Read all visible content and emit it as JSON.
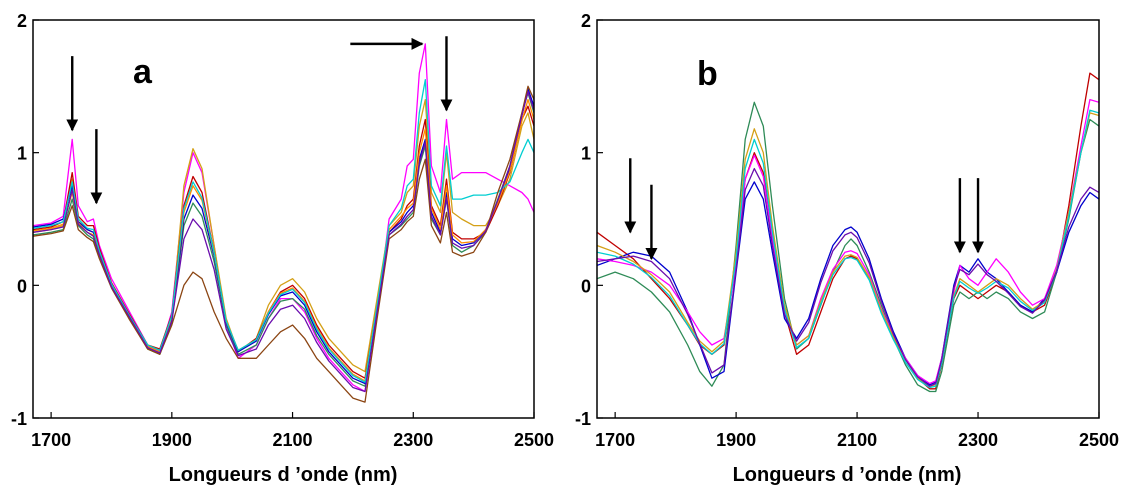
{
  "chart_data": [
    {
      "type": "line",
      "panel_label": "a",
      "xlabel": "Longueurs d ’onde (nm)",
      "ylabel": "",
      "xlim": [
        1670,
        2500
      ],
      "ylim": [
        -1,
        2
      ],
      "x_ticks": [
        1700,
        1900,
        2100,
        2300,
        2500
      ],
      "y_ticks": [
        -1,
        0,
        1,
        2
      ],
      "grid": false,
      "legend": "none",
      "x": [
        1670,
        1700,
        1720,
        1735,
        1745,
        1760,
        1770,
        1780,
        1800,
        1830,
        1860,
        1880,
        1900,
        1920,
        1935,
        1950,
        1970,
        1990,
        2010,
        2040,
        2060,
        2080,
        2100,
        2120,
        2140,
        2160,
        2180,
        2200,
        2220,
        2240,
        2260,
        2280,
        2290,
        2300,
        2310,
        2320,
        2330,
        2345,
        2355,
        2365,
        2380,
        2400,
        2420,
        2440,
        2460,
        2480,
        2490,
        2500
      ],
      "series": [
        {
          "color": "#ff00ff",
          "values": [
            0.45,
            0.47,
            0.52,
            1.1,
            0.6,
            0.48,
            0.5,
            0.3,
            0.05,
            -0.2,
            -0.45,
            -0.5,
            -0.2,
            0.7,
            1.0,
            0.85,
            0.3,
            -0.3,
            -0.55,
            -0.45,
            -0.25,
            -0.1,
            -0.1,
            -0.2,
            -0.4,
            -0.55,
            -0.65,
            -0.75,
            -0.8,
            -0.2,
            0.5,
            0.65,
            0.9,
            0.95,
            1.6,
            1.82,
            0.9,
            0.7,
            1.25,
            0.8,
            0.85,
            0.85,
            0.85,
            0.8,
            0.75,
            0.7,
            0.65,
            0.55
          ]
        },
        {
          "color": "#d4a017",
          "values": [
            0.4,
            0.42,
            0.45,
            0.8,
            0.5,
            0.42,
            0.4,
            0.25,
            0.0,
            -0.25,
            -0.48,
            -0.52,
            -0.25,
            0.75,
            1.03,
            0.88,
            0.3,
            -0.25,
            -0.5,
            -0.4,
            -0.15,
            0.0,
            0.05,
            -0.05,
            -0.25,
            -0.4,
            -0.5,
            -0.6,
            -0.65,
            -0.1,
            0.45,
            0.55,
            0.7,
            0.75,
            1.2,
            1.4,
            0.7,
            0.55,
            1.0,
            0.55,
            0.5,
            0.45,
            0.45,
            0.6,
            0.8,
            1.2,
            1.3,
            1.1
          ]
        },
        {
          "color": "#c00000",
          "values": [
            0.42,
            0.44,
            0.48,
            0.85,
            0.52,
            0.45,
            0.45,
            0.28,
            0.02,
            -0.22,
            -0.45,
            -0.48,
            -0.22,
            0.6,
            0.82,
            0.7,
            0.25,
            -0.28,
            -0.5,
            -0.4,
            -0.2,
            -0.05,
            0.0,
            -0.1,
            -0.3,
            -0.45,
            -0.55,
            -0.65,
            -0.7,
            -0.15,
            0.4,
            0.5,
            0.6,
            0.65,
            1.05,
            1.25,
            0.6,
            0.45,
            0.8,
            0.4,
            0.35,
            0.35,
            0.4,
            0.6,
            0.85,
            1.25,
            1.35,
            1.2
          ]
        },
        {
          "color": "#2e8b57",
          "values": [
            0.38,
            0.4,
            0.42,
            0.65,
            0.45,
            0.38,
            0.35,
            0.22,
            0.0,
            -0.25,
            -0.48,
            -0.52,
            -0.28,
            0.45,
            0.62,
            0.52,
            0.18,
            -0.3,
            -0.52,
            -0.45,
            -0.25,
            -0.12,
            -0.1,
            -0.18,
            -0.38,
            -0.52,
            -0.62,
            -0.72,
            -0.76,
            -0.18,
            0.38,
            0.45,
            0.5,
            0.55,
            0.9,
            1.05,
            0.5,
            0.38,
            0.65,
            0.3,
            0.25,
            0.3,
            0.4,
            0.65,
            0.9,
            1.3,
            1.45,
            1.3
          ]
        },
        {
          "color": "#0000cd",
          "values": [
            0.44,
            0.46,
            0.5,
            0.75,
            0.48,
            0.42,
            0.4,
            0.25,
            0.0,
            -0.24,
            -0.46,
            -0.5,
            -0.26,
            0.5,
            0.68,
            0.58,
            0.22,
            -0.28,
            -0.5,
            -0.42,
            -0.22,
            -0.08,
            -0.05,
            -0.15,
            -0.35,
            -0.5,
            -0.6,
            -0.7,
            -0.74,
            -0.16,
            0.4,
            0.48,
            0.55,
            0.6,
            0.95,
            1.1,
            0.55,
            0.4,
            0.7,
            0.35,
            0.3,
            0.32,
            0.42,
            0.62,
            0.88,
            1.28,
            1.48,
            1.35
          ]
        },
        {
          "color": "#ff8c00",
          "values": [
            0.41,
            0.43,
            0.46,
            0.7,
            0.47,
            0.4,
            0.38,
            0.24,
            0.0,
            -0.23,
            -0.46,
            -0.5,
            -0.24,
            0.55,
            0.75,
            0.64,
            0.24,
            -0.27,
            -0.49,
            -0.41,
            -0.2,
            -0.06,
            -0.02,
            -0.12,
            -0.32,
            -0.47,
            -0.57,
            -0.67,
            -0.72,
            -0.14,
            0.42,
            0.52,
            0.58,
            0.62,
            1.0,
            1.18,
            0.58,
            0.42,
            0.75,
            0.38,
            0.32,
            0.33,
            0.42,
            0.62,
            0.86,
            1.24,
            1.4,
            1.25
          ]
        },
        {
          "color": "#00ced1",
          "values": [
            0.43,
            0.45,
            0.48,
            0.78,
            0.5,
            0.43,
            0.42,
            0.26,
            0.01,
            -0.23,
            -0.45,
            -0.49,
            -0.23,
            0.58,
            0.78,
            0.66,
            0.25,
            -0.27,
            -0.49,
            -0.41,
            -0.21,
            -0.07,
            -0.03,
            -0.13,
            -0.33,
            -0.48,
            -0.58,
            -0.68,
            -0.73,
            -0.15,
            0.45,
            0.58,
            0.75,
            0.8,
            1.3,
            1.55,
            0.75,
            0.6,
            1.05,
            0.65,
            0.65,
            0.68,
            0.68,
            0.7,
            0.78,
            1.0,
            1.1,
            1.0
          ]
        },
        {
          "color": "#8b4513",
          "values": [
            0.37,
            0.39,
            0.41,
            0.6,
            0.42,
            0.36,
            0.33,
            0.2,
            -0.02,
            -0.26,
            -0.48,
            -0.52,
            -0.3,
            0.0,
            0.1,
            0.05,
            -0.2,
            -0.4,
            -0.55,
            -0.55,
            -0.45,
            -0.35,
            -0.3,
            -0.4,
            -0.55,
            -0.65,
            -0.75,
            -0.85,
            -0.88,
            -0.25,
            0.35,
            0.42,
            0.48,
            0.52,
            0.8,
            0.95,
            0.45,
            0.32,
            0.55,
            0.25,
            0.22,
            0.25,
            0.4,
            0.7,
            0.95,
            1.3,
            1.5,
            1.4
          ]
        },
        {
          "color": "#6a0dad",
          "values": [
            0.4,
            0.42,
            0.44,
            0.72,
            0.46,
            0.4,
            0.37,
            0.23,
            -0.01,
            -0.24,
            -0.47,
            -0.51,
            -0.27,
            0.35,
            0.5,
            0.42,
            0.12,
            -0.33,
            -0.53,
            -0.48,
            -0.3,
            -0.18,
            -0.15,
            -0.25,
            -0.43,
            -0.57,
            -0.67,
            -0.77,
            -0.8,
            -0.2,
            0.38,
            0.46,
            0.52,
            0.57,
            0.92,
            1.08,
            0.52,
            0.38,
            0.66,
            0.32,
            0.28,
            0.3,
            0.41,
            0.64,
            0.9,
            1.28,
            1.46,
            1.32
          ]
        }
      ],
      "annotations": [
        {
          "type": "arrow",
          "direction": "down",
          "x": 1735,
          "y": 1.17
        },
        {
          "type": "arrow",
          "direction": "down",
          "x": 1775,
          "y": 0.62
        },
        {
          "type": "arrow",
          "direction": "right",
          "x": 2315,
          "y": 1.82
        },
        {
          "type": "arrow",
          "direction": "down",
          "x": 2355,
          "y": 1.32
        }
      ]
    },
    {
      "type": "line",
      "panel_label": "b",
      "xlabel": "Longueurs d ’onde (nm)",
      "ylabel": "",
      "xlim": [
        1670,
        2500
      ],
      "ylim": [
        -1,
        2
      ],
      "x_ticks": [
        1700,
        1900,
        2100,
        2300,
        2500
      ],
      "y_ticks": [
        -1,
        0,
        1,
        2
      ],
      "grid": false,
      "legend": "none",
      "x": [
        1670,
        1700,
        1730,
        1760,
        1790,
        1820,
        1840,
        1860,
        1880,
        1900,
        1915,
        1930,
        1945,
        1960,
        1980,
        2000,
        2020,
        2040,
        2060,
        2080,
        2090,
        2100,
        2120,
        2140,
        2160,
        2180,
        2200,
        2220,
        2230,
        2240,
        2260,
        2270,
        2285,
        2300,
        2315,
        2330,
        2350,
        2370,
        2390,
        2410,
        2430,
        2450,
        2470,
        2485,
        2500
      ],
      "series": [
        {
          "color": "#c00000",
          "values": [
            0.4,
            0.3,
            0.2,
            0.05,
            -0.1,
            -0.3,
            -0.45,
            -0.52,
            -0.45,
            0.2,
            0.8,
            1.0,
            0.85,
            0.4,
            -0.2,
            -0.52,
            -0.45,
            -0.2,
            0.05,
            0.2,
            0.22,
            0.2,
            0.05,
            -0.2,
            -0.4,
            -0.55,
            -0.7,
            -0.78,
            -0.78,
            -0.6,
            -0.1,
            0.0,
            -0.05,
            -0.1,
            -0.05,
            0.0,
            -0.05,
            -0.15,
            -0.2,
            -0.15,
            0.1,
            0.6,
            1.2,
            1.6,
            1.55
          ]
        },
        {
          "color": "#2e8b57",
          "values": [
            0.05,
            0.1,
            0.05,
            -0.05,
            -0.2,
            -0.45,
            -0.65,
            -0.76,
            -0.6,
            0.3,
            1.1,
            1.38,
            1.2,
            0.6,
            -0.1,
            -0.48,
            -0.4,
            -0.15,
            0.1,
            0.3,
            0.35,
            0.3,
            0.1,
            -0.15,
            -0.4,
            -0.6,
            -0.75,
            -0.8,
            -0.8,
            -0.65,
            -0.15,
            -0.05,
            -0.1,
            -0.05,
            -0.1,
            -0.05,
            -0.1,
            -0.2,
            -0.25,
            -0.2,
            0.1,
            0.5,
            1.0,
            1.25,
            1.2
          ]
        },
        {
          "color": "#0000cd",
          "values": [
            0.15,
            0.2,
            0.25,
            0.22,
            0.1,
            -0.2,
            -0.45,
            -0.7,
            -0.65,
            0.1,
            0.65,
            0.78,
            0.65,
            0.25,
            -0.25,
            -0.4,
            -0.25,
            0.05,
            0.3,
            0.42,
            0.44,
            0.4,
            0.2,
            -0.1,
            -0.35,
            -0.55,
            -0.68,
            -0.75,
            -0.73,
            -0.55,
            0.0,
            0.15,
            0.1,
            0.2,
            0.1,
            0.05,
            -0.05,
            -0.15,
            -0.2,
            -0.1,
            0.1,
            0.4,
            0.6,
            0.7,
            0.65
          ]
        },
        {
          "color": "#ff00ff",
          "values": [
            0.2,
            0.18,
            0.15,
            0.1,
            0.0,
            -0.2,
            -0.35,
            -0.45,
            -0.4,
            0.15,
            0.8,
            0.98,
            0.82,
            0.35,
            -0.2,
            -0.45,
            -0.38,
            -0.1,
            0.12,
            0.25,
            0.26,
            0.24,
            0.08,
            -0.18,
            -0.38,
            -0.55,
            -0.68,
            -0.74,
            -0.72,
            -0.55,
            -0.05,
            0.15,
            0.05,
            0.0,
            0.1,
            0.2,
            0.1,
            -0.05,
            -0.15,
            -0.1,
            0.15,
            0.55,
            1.05,
            1.4,
            1.38
          ]
        },
        {
          "color": "#d4a017",
          "values": [
            0.3,
            0.25,
            0.18,
            0.08,
            -0.05,
            -0.28,
            -0.42,
            -0.5,
            -0.42,
            0.25,
            0.95,
            1.18,
            1.0,
            0.45,
            -0.15,
            -0.45,
            -0.38,
            -0.12,
            0.1,
            0.22,
            0.23,
            0.21,
            0.06,
            -0.19,
            -0.39,
            -0.56,
            -0.7,
            -0.76,
            -0.75,
            -0.58,
            -0.08,
            0.05,
            0.0,
            -0.05,
            0.0,
            0.05,
            0.0,
            -0.1,
            -0.18,
            -0.12,
            0.12,
            0.55,
            1.0,
            1.3,
            1.28
          ]
        },
        {
          "color": "#00ced1",
          "values": [
            0.25,
            0.22,
            0.16,
            0.06,
            -0.08,
            -0.3,
            -0.44,
            -0.52,
            -0.44,
            0.2,
            0.88,
            1.1,
            0.92,
            0.4,
            -0.18,
            -0.47,
            -0.4,
            -0.14,
            0.08,
            0.2,
            0.21,
            0.19,
            0.04,
            -0.21,
            -0.41,
            -0.58,
            -0.71,
            -0.77,
            -0.76,
            -0.59,
            -0.09,
            0.03,
            -0.02,
            -0.06,
            -0.02,
            0.03,
            -0.02,
            -0.12,
            -0.19,
            -0.13,
            0.11,
            0.52,
            1.0,
            1.32,
            1.3
          ]
        },
        {
          "color": "#6a0dad",
          "values": [
            0.18,
            0.2,
            0.22,
            0.18,
            0.05,
            -0.22,
            -0.44,
            -0.66,
            -0.6,
            0.12,
            0.72,
            0.88,
            0.75,
            0.3,
            -0.22,
            -0.42,
            -0.28,
            0.02,
            0.26,
            0.38,
            0.4,
            0.36,
            0.17,
            -0.12,
            -0.37,
            -0.56,
            -0.69,
            -0.76,
            -0.74,
            -0.56,
            -0.02,
            0.12,
            0.08,
            0.16,
            0.08,
            0.03,
            -0.06,
            -0.16,
            -0.21,
            -0.11,
            0.11,
            0.44,
            0.65,
            0.74,
            0.7
          ]
        }
      ],
      "annotations": [
        {
          "type": "arrow",
          "direction": "down",
          "x": 1725,
          "y": 0.4
        },
        {
          "type": "arrow",
          "direction": "down",
          "x": 1760,
          "y": 0.2
        },
        {
          "type": "arrow",
          "direction": "down",
          "x": 2270,
          "y": 0.25
        },
        {
          "type": "arrow",
          "direction": "down",
          "x": 2300,
          "y": 0.25
        }
      ]
    }
  ]
}
